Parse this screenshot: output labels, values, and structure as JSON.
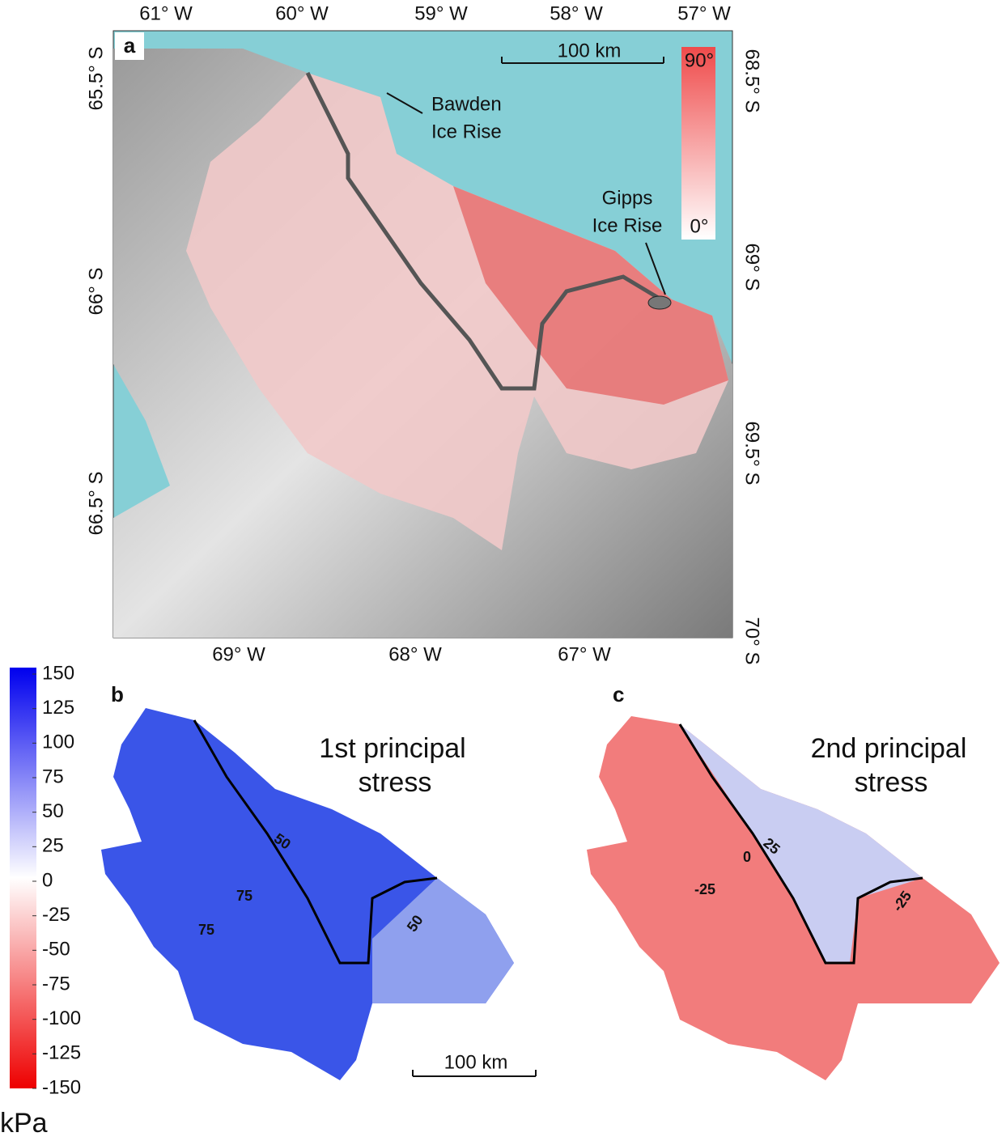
{
  "panel_a": {
    "label": "a",
    "top_axis": [
      "61° W",
      "60° W",
      "59° W",
      "58° W",
      "57° W"
    ],
    "bottom_axis": [
      "69° W",
      "68° W",
      "67° W"
    ],
    "left_axis": [
      "65.5° S",
      "66° S",
      "66.5° S"
    ],
    "right_axis": [
      "68.5° S",
      "69° S",
      "69.5° S",
      "70° S"
    ],
    "scale_bar": "100 km",
    "colorbar": {
      "max": "90°",
      "min": "0°"
    },
    "annotations": [
      [
        "Bawden",
        "Ice Rise"
      ],
      [
        "Gipps",
        "Ice Rise"
      ]
    ]
  },
  "stress_colorbar": {
    "ticks": [
      150,
      125,
      100,
      75,
      50,
      25,
      0,
      -25,
      -50,
      -75,
      -100,
      -125,
      -150
    ],
    "unit": "kPa"
  },
  "panel_b": {
    "label": "b",
    "title": [
      "1st principal",
      "stress"
    ],
    "contour_labels": [
      "50",
      "75",
      "75",
      "50"
    ],
    "scale_bar": "100 km"
  },
  "panel_c": {
    "label": "c",
    "title": [
      "2nd principal",
      "stress"
    ],
    "contour_labels": [
      "25",
      "0",
      "-25",
      "-25"
    ]
  }
}
